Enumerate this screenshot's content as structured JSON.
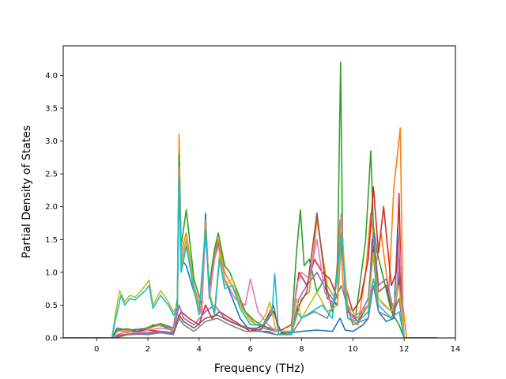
{
  "chart_data": {
    "type": "line",
    "title": "",
    "xlabel": "Frequency (THz)",
    "ylabel": "Partial Density of States",
    "xlim": [
      -1.3,
      14.0
    ],
    "ylim": [
      0.0,
      4.45
    ],
    "xticks": [
      0,
      2,
      4,
      6,
      8,
      10,
      12,
      14
    ],
    "yticks": [
      0.0,
      0.5,
      1.0,
      1.5,
      2.0,
      2.5,
      3.0,
      3.5,
      4.0
    ],
    "xtick_labels": [
      "0",
      "2",
      "4",
      "6",
      "8",
      "10",
      "12",
      "14"
    ],
    "ytick_labels": [
      "0.0",
      "0.5",
      "1.0",
      "1.5",
      "2.0",
      "2.5",
      "3.0",
      "3.5",
      "4.0"
    ],
    "grid": false,
    "legend": "none",
    "series": [
      {
        "color": "#1f77b4",
        "x": [
          -1.3,
          0.6,
          0.8,
          1.2,
          1.6,
          2.0,
          2.2,
          2.6,
          3.0,
          3.15,
          3.22,
          3.3,
          3.5,
          3.8,
          4.1,
          4.25,
          4.4,
          4.6,
          4.75,
          5.0,
          5.3,
          5.6,
          5.9,
          6.3,
          6.7,
          7.0,
          7.6,
          8.0,
          8.6,
          9.2,
          9.5,
          9.7,
          10.0,
          10.4,
          10.6,
          10.75,
          11.0,
          11.3,
          11.6,
          11.75,
          11.9,
          12.0,
          13.3
        ],
        "y": [
          0,
          0,
          0.15,
          0.12,
          0.13,
          0.15,
          0.2,
          0.18,
          0.1,
          0.4,
          2.45,
          1.2,
          1.1,
          0.7,
          0.35,
          1.9,
          0.6,
          1.2,
          1.45,
          0.9,
          0.6,
          0.3,
          0.15,
          0.1,
          0.1,
          0.05,
          0.08,
          0.1,
          0.12,
          0.1,
          0.3,
          0.12,
          0.1,
          0.2,
          0.3,
          1.5,
          0.4,
          0.25,
          0.3,
          1.7,
          0.2,
          0,
          0
        ]
      },
      {
        "color": "#ff7f0e",
        "x": [
          -1.3,
          0.6,
          0.8,
          1.2,
          1.6,
          2.0,
          2.3,
          2.6,
          3.0,
          3.15,
          3.22,
          3.3,
          3.5,
          3.8,
          4.1,
          4.25,
          4.4,
          4.6,
          4.75,
          5.0,
          5.4,
          5.8,
          6.2,
          6.8,
          7.6,
          8.0,
          8.3,
          8.6,
          9.0,
          9.3,
          9.5,
          9.6,
          9.8,
          10.2,
          10.5,
          10.7,
          10.9,
          11.1,
          11.4,
          11.6,
          11.85,
          11.95,
          12.1,
          13.3
        ],
        "y": [
          0,
          0,
          0.1,
          0.12,
          0.1,
          0.14,
          0.18,
          0.2,
          0.12,
          0.5,
          3.1,
          1.3,
          1.6,
          0.8,
          0.4,
          1.8,
          0.7,
          1.3,
          1.5,
          1.0,
          0.7,
          0.4,
          0.2,
          0.15,
          0.05,
          0.6,
          0.7,
          1.8,
          0.8,
          0.6,
          1.8,
          0.9,
          0.3,
          0.2,
          1.0,
          1.9,
          1.1,
          1.6,
          0.7,
          2.3,
          3.2,
          0.5,
          0,
          0
        ]
      },
      {
        "color": "#2ca02c",
        "x": [
          -1.3,
          0.6,
          0.8,
          1.2,
          1.6,
          2.0,
          2.5,
          3.0,
          3.15,
          3.22,
          3.3,
          3.5,
          3.8,
          4.1,
          4.25,
          4.4,
          4.6,
          4.75,
          5.0,
          5.2,
          5.5,
          5.8,
          6.2,
          6.7,
          7.0,
          7.6,
          7.8,
          7.95,
          8.1,
          8.3,
          8.6,
          8.9,
          9.2,
          9.4,
          9.52,
          9.6,
          9.8,
          10.1,
          10.5,
          10.7,
          10.8,
          10.95,
          11.2,
          11.5,
          11.8,
          12.0,
          13.3
        ],
        "y": [
          0,
          0,
          0.12,
          0.14,
          0.1,
          0.16,
          0.22,
          0.15,
          0.6,
          2.8,
          1.4,
          1.95,
          0.9,
          0.5,
          1.6,
          0.8,
          1.35,
          1.6,
          1.1,
          1.0,
          0.7,
          0.4,
          0.25,
          0.15,
          0.1,
          0.1,
          1.3,
          1.95,
          1.1,
          1.2,
          0.7,
          0.9,
          0.4,
          1.1,
          4.2,
          1.3,
          0.4,
          0.3,
          1.5,
          2.85,
          1.7,
          1.3,
          0.9,
          0.4,
          0.2,
          0,
          0
        ]
      },
      {
        "color": "#d62728",
        "x": [
          -1.3,
          0.7,
          1.0,
          1.5,
          2.0,
          2.5,
          3.0,
          3.2,
          3.3,
          3.6,
          4.0,
          4.25,
          4.5,
          4.8,
          5.2,
          5.6,
          6.0,
          6.5,
          6.9,
          7.1,
          7.6,
          7.9,
          8.2,
          8.5,
          8.8,
          9.1,
          9.4,
          9.55,
          9.7,
          10.0,
          10.3,
          10.6,
          10.8,
          11.0,
          11.2,
          11.5,
          11.7,
          11.8,
          11.9,
          12.0,
          13.3
        ],
        "y": [
          0,
          0,
          0.08,
          0.1,
          0.12,
          0.1,
          0.08,
          0.3,
          0.4,
          0.3,
          0.2,
          0.5,
          0.3,
          0.4,
          0.3,
          0.2,
          0.1,
          0.2,
          0.5,
          0.1,
          0.2,
          1.0,
          0.8,
          1.2,
          1.0,
          0.9,
          0.6,
          1.9,
          0.8,
          0.4,
          0.6,
          1.2,
          2.3,
          1.3,
          2.0,
          0.8,
          1.0,
          2.2,
          0.5,
          0,
          0
        ]
      },
      {
        "color": "#9467bd",
        "x": [
          -1.3,
          0.7,
          1.2,
          2.0,
          2.5,
          3.0,
          3.22,
          3.4,
          3.8,
          4.25,
          4.6,
          5.0,
          5.5,
          6.0,
          6.5,
          7.0,
          7.6,
          7.9,
          8.2,
          8.6,
          9.0,
          9.4,
          9.55,
          9.8,
          10.2,
          10.6,
          10.8,
          11.0,
          11.3,
          11.6,
          11.8,
          12.0,
          13.3
        ],
        "y": [
          0,
          0,
          0.06,
          0.08,
          0.1,
          0.08,
          0.5,
          0.3,
          0.2,
          0.4,
          0.5,
          0.3,
          0.2,
          0.15,
          0.15,
          0.1,
          0.1,
          0.6,
          0.8,
          1.0,
          0.7,
          0.5,
          1.5,
          0.4,
          0.3,
          0.6,
          1.6,
          0.8,
          0.9,
          0.4,
          1.0,
          0,
          0
        ]
      },
      {
        "color": "#8c564b",
        "x": [
          -1.3,
          0.7,
          1.2,
          2.0,
          2.5,
          3.0,
          3.22,
          3.4,
          3.8,
          4.25,
          4.7,
          5.2,
          5.8,
          6.4,
          6.9,
          7.2,
          7.6,
          7.9,
          8.2,
          8.6,
          9.0,
          9.4,
          9.55,
          9.8,
          10.2,
          10.6,
          10.8,
          11.0,
          11.3,
          11.6,
          11.8,
          12.0,
          13.3
        ],
        "y": [
          0,
          0,
          0.05,
          0.06,
          0.08,
          0.06,
          0.35,
          0.25,
          0.15,
          0.3,
          0.35,
          0.25,
          0.15,
          0.12,
          0.4,
          0.08,
          0.1,
          0.5,
          0.7,
          1.9,
          0.6,
          0.5,
          1.6,
          0.4,
          0.25,
          0.5,
          1.4,
          0.7,
          0.8,
          0.3,
          0.9,
          0,
          0
        ]
      },
      {
        "color": "#e377c2",
        "x": [
          -1.3,
          0.6,
          0.8,
          1.2,
          1.6,
          2.0,
          2.5,
          3.0,
          3.15,
          3.22,
          3.3,
          3.5,
          3.8,
          4.1,
          4.25,
          4.4,
          4.6,
          4.75,
          5.0,
          5.4,
          5.8,
          6.0,
          6.3,
          6.7,
          7.0,
          7.6,
          7.8,
          8.0,
          8.3,
          8.6,
          8.9,
          9.2,
          9.4,
          9.55,
          9.7,
          10.0,
          10.3,
          10.6,
          10.8,
          11.0,
          11.2,
          11.5,
          11.7,
          11.8,
          11.9,
          12.0,
          13.3
        ],
        "y": [
          0,
          0,
          0.05,
          0.1,
          0.08,
          0.12,
          0.15,
          0.12,
          0.5,
          2.6,
          1.2,
          1.5,
          0.7,
          0.35,
          1.7,
          0.6,
          1.2,
          1.4,
          0.9,
          0.6,
          0.5,
          0.9,
          0.4,
          0.2,
          0.1,
          0.1,
          0.8,
          1.0,
          0.9,
          1.5,
          0.7,
          0.5,
          0.9,
          1.9,
          0.6,
          0.3,
          0.4,
          0.5,
          0.9,
          0.6,
          0.5,
          0.4,
          0.6,
          1.5,
          0.9,
          0,
          0
        ]
      },
      {
        "color": "#7f7f7f",
        "x": [
          -1.3,
          0.7,
          1.0,
          1.5,
          2.0,
          2.5,
          3.0,
          3.22,
          3.4,
          3.8,
          4.25,
          4.7,
          5.2,
          5.8,
          6.4,
          7.0,
          7.6,
          8.0,
          8.5,
          9.0,
          9.55,
          10.0,
          10.6,
          10.8,
          11.0,
          11.5,
          11.8,
          12.0,
          13.3
        ],
        "y": [
          0,
          0,
          0.05,
          0.06,
          0.05,
          0.08,
          0.05,
          0.3,
          0.2,
          0.1,
          0.25,
          0.3,
          0.2,
          0.1,
          0.1,
          0.05,
          0.05,
          0.3,
          0.4,
          0.3,
          0.8,
          0.2,
          0.3,
          0.8,
          0.4,
          0.3,
          0.6,
          0,
          0
        ]
      },
      {
        "color": "#bcbd22",
        "x": [
          -1.3,
          0.6,
          0.75,
          0.9,
          1.1,
          1.3,
          1.5,
          1.7,
          1.9,
          2.05,
          2.2,
          2.5,
          2.8,
          3.0,
          3.15,
          3.22,
          3.3,
          3.5,
          3.8,
          4.0,
          4.25,
          4.4,
          4.6,
          4.8,
          5.0,
          5.3,
          5.6,
          6.0,
          6.3,
          6.6,
          6.75,
          6.9,
          7.0,
          7.6,
          7.8,
          8.0,
          8.3,
          8.6,
          9.0,
          9.4,
          9.55,
          9.8,
          10.2,
          10.6,
          10.8,
          11.0,
          11.5,
          11.8,
          12.0,
          13.3
        ],
        "y": [
          0,
          0,
          0.4,
          0.72,
          0.55,
          0.65,
          0.62,
          0.7,
          0.8,
          0.88,
          0.5,
          0.72,
          0.55,
          0.4,
          0.5,
          2.5,
          1.1,
          1.5,
          0.8,
          0.4,
          1.7,
          0.7,
          0.4,
          1.3,
          0.8,
          0.9,
          0.5,
          0.25,
          0.2,
          0.35,
          0.55,
          0.3,
          0.1,
          0.1,
          0.6,
          0.3,
          0.5,
          0.7,
          0.4,
          0.5,
          1.7,
          0.5,
          0.3,
          0.5,
          1.3,
          0.6,
          0.4,
          0.8,
          0,
          0
        ]
      },
      {
        "color": "#17becf",
        "x": [
          -1.3,
          0.6,
          0.75,
          0.95,
          1.1,
          1.3,
          1.5,
          1.7,
          1.9,
          2.05,
          2.2,
          2.5,
          2.8,
          3.0,
          3.15,
          3.22,
          3.3,
          3.5,
          3.8,
          4.0,
          4.25,
          4.4,
          4.6,
          4.8,
          5.0,
          5.3,
          5.6,
          6.0,
          6.5,
          6.85,
          6.95,
          7.02,
          7.1,
          7.6,
          7.8,
          8.0,
          8.4,
          8.8,
          9.2,
          9.55,
          9.8,
          10.2,
          10.6,
          10.8,
          11.0,
          11.5,
          11.8,
          12.0,
          13.3
        ],
        "y": [
          0,
          0,
          0.3,
          0.65,
          0.5,
          0.6,
          0.58,
          0.65,
          0.72,
          0.8,
          0.45,
          0.65,
          0.5,
          0.35,
          0.45,
          2.45,
          1.0,
          1.4,
          0.75,
          0.35,
          1.65,
          0.65,
          0.35,
          1.2,
          0.75,
          0.8,
          0.45,
          0.2,
          0.2,
          0.4,
          0.98,
          0.6,
          0.05,
          0.05,
          0.4,
          0.3,
          0.4,
          0.5,
          0.3,
          1.6,
          0.3,
          0.25,
          0.4,
          0.9,
          0.5,
          0.3,
          0.4,
          0,
          0
        ]
      }
    ]
  }
}
